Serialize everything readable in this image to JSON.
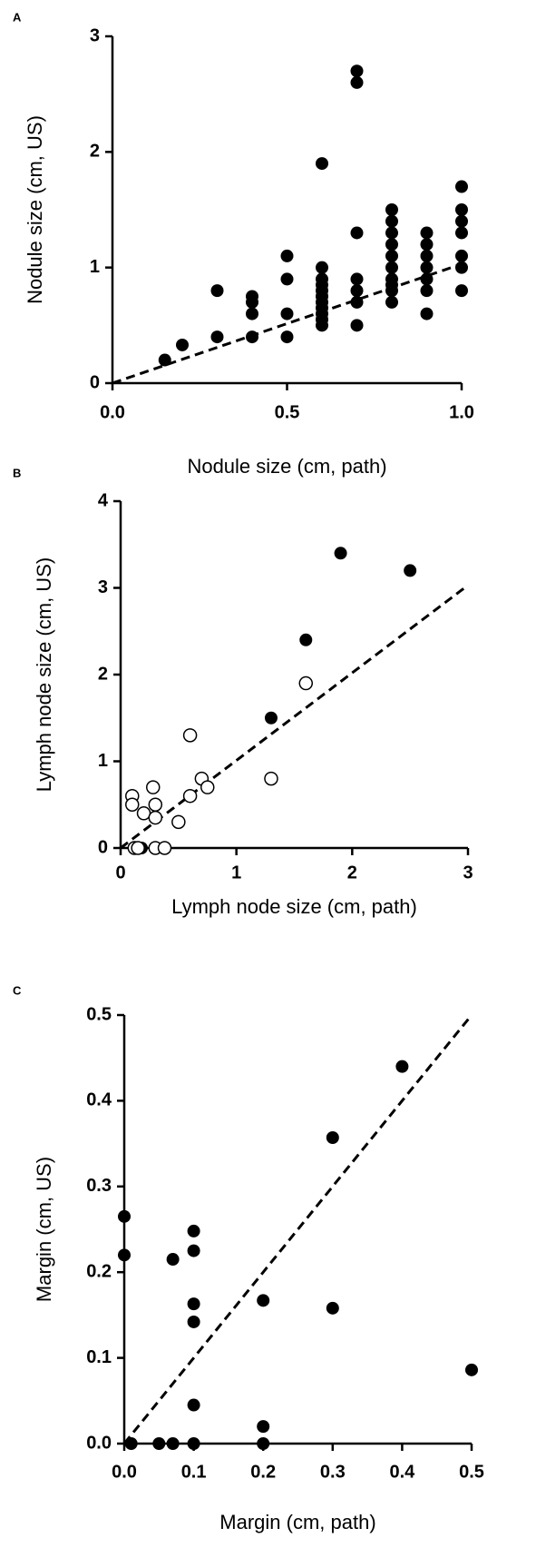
{
  "chart_data": [
    {
      "type": "scatter",
      "label": "A",
      "x_label": "Nodule size (cm, path)",
      "y_label": "Nodule size (cm, US)",
      "xlim": [
        0,
        1
      ],
      "ylim": [
        0,
        3
      ],
      "xticks": [
        {
          "value": 0,
          "label": "0.0"
        },
        0.5,
        {
          "value": 1,
          "label": "1.0"
        }
      ],
      "yticks": [
        0,
        1,
        2,
        3
      ],
      "series": [
        {
          "color": "#000000",
          "marker": "filled",
          "x": [
            0.15,
            0.2,
            0.3,
            0.3,
            0.4,
            0.4,
            0.4,
            0.4,
            0.5,
            0.5,
            0.5,
            0.5,
            0.6,
            0.6,
            0.6,
            0.6,
            0.6,
            0.6,
            0.6,
            0.6,
            0.6,
            0.6,
            0.6,
            0.7,
            0.7,
            0.7,
            0.7,
            0.7,
            0.7,
            0.7,
            0.8,
            0.8,
            0.8,
            0.8,
            0.8,
            0.8,
            0.8,
            0.8,
            0.8,
            0.8,
            0.9,
            0.9,
            0.9,
            0.9,
            0.9,
            0.9,
            0.9,
            1,
            1,
            1,
            1,
            1,
            1,
            1
          ],
          "y": [
            0.2,
            0.33,
            0.4,
            0.8,
            0.4,
            0.6,
            0.7,
            0.75,
            0.4,
            0.6,
            0.9,
            1.1,
            0.5,
            0.55,
            0.6,
            0.65,
            0.7,
            0.75,
            0.8,
            0.85,
            0.9,
            1.0,
            1.9,
            0.5,
            0.7,
            0.8,
            0.9,
            1.3,
            2.6,
            2.7,
            0.7,
            0.8,
            0.85,
            0.9,
            1.0,
            1.1,
            1.2,
            1.3,
            1.4,
            1.5,
            0.6,
            0.8,
            0.9,
            1.0,
            1.1,
            1.2,
            1.3,
            0.8,
            1.0,
            1.1,
            1.3,
            1.4,
            1.5,
            1.7
          ]
        }
      ],
      "trend_line": {
        "x": [
          0,
          1
        ],
        "y": [
          0,
          1.03
        ],
        "dashed": true
      }
    },
    {
      "type": "scatter",
      "label": "B",
      "x_label": "Lymph node size (cm, path)",
      "y_label": "Lymph node size (cm, US)",
      "xlim": [
        0,
        3
      ],
      "ylim": [
        0,
        4
      ],
      "xticks": [
        0,
        1,
        2,
        3
      ],
      "yticks": [
        0,
        1,
        2,
        3,
        4
      ],
      "series": [
        {
          "color": "#000000",
          "marker": "filled",
          "x": [
            0.18,
            1.3,
            1.6,
            1.9,
            2.5
          ],
          "y": [
            0,
            1.5,
            2.4,
            3.4,
            3.2
          ]
        },
        {
          "color": "#000000",
          "marker": "open",
          "x": [
            0.1,
            0.1,
            0.12,
            0.15,
            0.2,
            0.28,
            0.3,
            0.3,
            0.3,
            0.38,
            0.5,
            0.6,
            0.6,
            0.7,
            0.75,
            1.3,
            1.6
          ],
          "y": [
            0.6,
            0.5,
            0,
            0,
            0.4,
            0.7,
            0.5,
            0.35,
            0,
            0,
            0.3,
            0.6,
            1.3,
            0.8,
            0.7,
            0.8,
            1.9
          ]
        }
      ],
      "trend_line": {
        "x": [
          0,
          3
        ],
        "y": [
          0,
          3.03
        ],
        "dashed": true
      }
    },
    {
      "type": "scatter",
      "label": "C",
      "x_label": "Margin (cm, path)",
      "y_label": "Margin (cm, US)",
      "xlim": [
        0,
        0.5
      ],
      "ylim": [
        0,
        0.5
      ],
      "xticks": [
        {
          "value": 0,
          "label": "0.0"
        },
        0.1,
        0.2,
        0.3,
        0.4,
        0.5
      ],
      "yticks": [
        {
          "value": 0,
          "label": "0.0"
        },
        0.1,
        0.2,
        0.3,
        0.4,
        0.5
      ],
      "series": [
        {
          "color": "#000000",
          "marker": "filled",
          "x": [
            0,
            0,
            0.01,
            0.05,
            0.07,
            0.07,
            0.1,
            0.1,
            0.1,
            0.1,
            0.1,
            0.1,
            0.2,
            0.2,
            0.2,
            0.3,
            0.3,
            0.4,
            0.5
          ],
          "y": [
            0.265,
            0.22,
            0,
            0,
            0.215,
            0,
            0.248,
            0.225,
            0.163,
            0.142,
            0.045,
            0,
            0.167,
            0.02,
            0,
            0.357,
            0.158,
            0.44,
            0.086
          ]
        }
      ],
      "trend_line": {
        "x": [
          0,
          0.5
        ],
        "y": [
          0,
          0.5
        ],
        "dashed": true
      }
    }
  ]
}
